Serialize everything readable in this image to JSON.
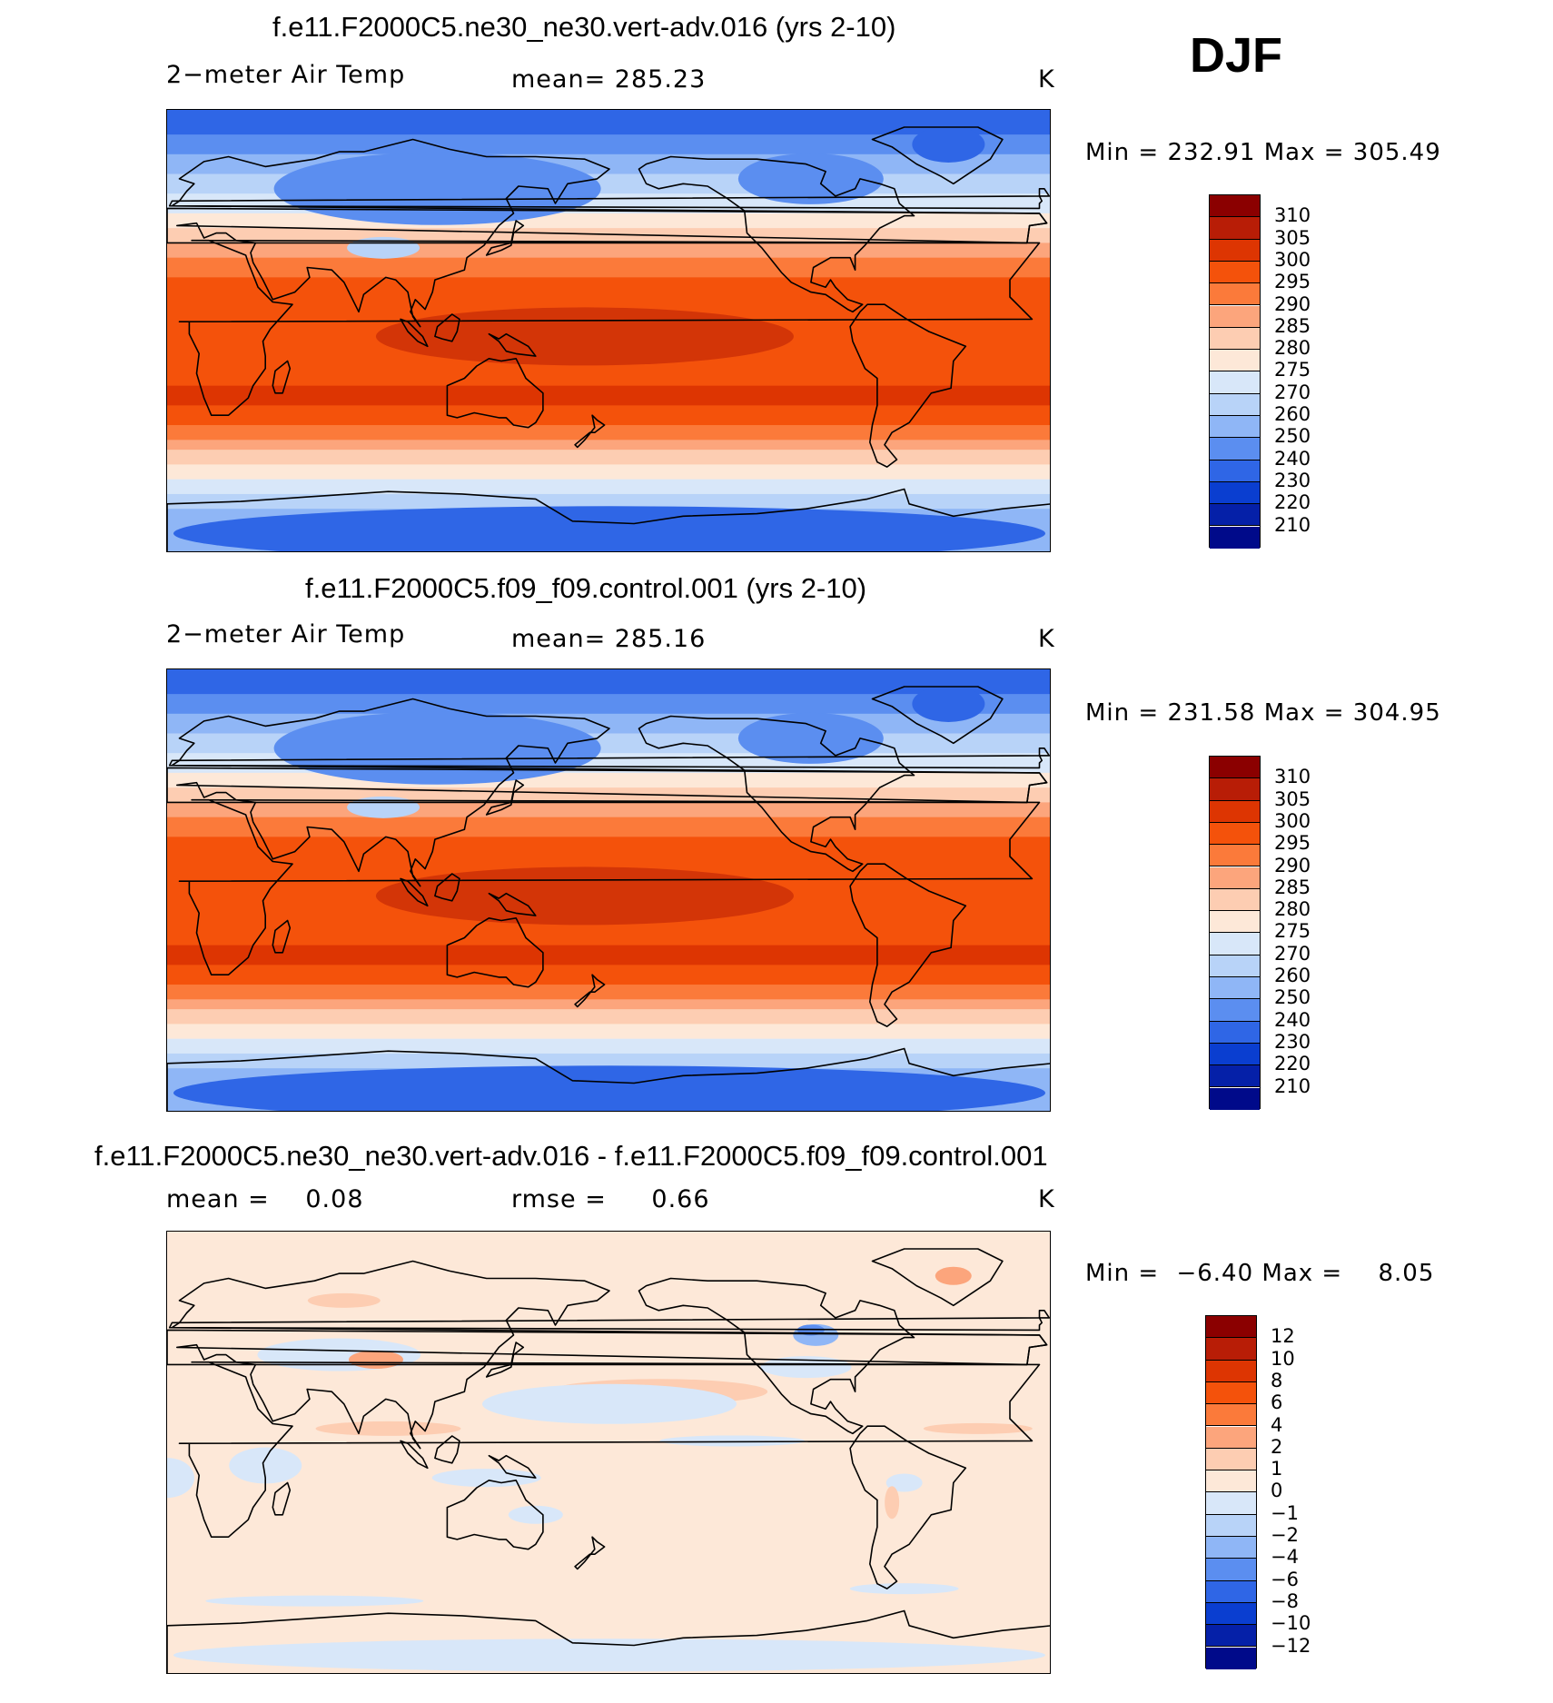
{
  "season": "DJF",
  "land_outline_color": "#000000",
  "chart_data": [
    {
      "type": "heatmap",
      "title": "f.e11.F2000C5.ne30_ne30.vert-adv.016 (yrs 2-10)",
      "variable": "2−meter Air Temp",
      "mean_label": "mean=",
      "mean": "285.23",
      "units": "K",
      "min_label": "Min =",
      "min": "232.91",
      "max_label": "Max =",
      "max": "305.49",
      "projection": "cylindrical equidistant, centered on 180°",
      "colorbar": {
        "labels": [
          "310",
          "305",
          "300",
          "295",
          "290",
          "285",
          "280",
          "275",
          "270",
          "260",
          "250",
          "240",
          "230",
          "220",
          "210"
        ],
        "colors": [
          "#8b0000",
          "#b81d06",
          "#dd3502",
          "#f4520b",
          "#fb7a3a",
          "#fca57c",
          "#fdcdb2",
          "#fde8d8",
          "#d8e7f9",
          "#b8d3f8",
          "#8fb6f6",
          "#5b8ef0",
          "#2f66e6",
          "#0a3ed0",
          "#0520a8",
          "#000a8a"
        ]
      },
      "bands": [
        {
          "lat": [
            90,
            72
          ],
          "value": "230-240"
        },
        {
          "lat": [
            72,
            55
          ],
          "value": "240-260"
        },
        {
          "lat": [
            55,
            42
          ],
          "value": "260-275"
        },
        {
          "lat": [
            42,
            30
          ],
          "value": "280-295"
        },
        {
          "lat": [
            30,
            -30
          ],
          "value": "295-305"
        },
        {
          "lat": [
            -30,
            -45
          ],
          "value": "285-295"
        },
        {
          "lat": [
            -45,
            -60
          ],
          "value": "270-280"
        },
        {
          "lat": [
            -60,
            -90
          ],
          "value": "240-260"
        }
      ]
    },
    {
      "type": "heatmap",
      "title": "f.e11.F2000C5.f09_f09.control.001 (yrs 2-10)",
      "variable": "2−meter Air Temp",
      "mean_label": "mean=",
      "mean": "285.16",
      "units": "K",
      "min_label": "Min =",
      "min": "231.58",
      "max_label": "Max =",
      "max": "304.95",
      "projection": "cylindrical equidistant, centered on 180°",
      "colorbar": {
        "labels": [
          "310",
          "305",
          "300",
          "295",
          "290",
          "285",
          "280",
          "275",
          "270",
          "260",
          "250",
          "240",
          "230",
          "220",
          "210"
        ],
        "colors": [
          "#8b0000",
          "#b81d06",
          "#dd3502",
          "#f4520b",
          "#fb7a3a",
          "#fca57c",
          "#fdcdb2",
          "#fde8d8",
          "#d8e7f9",
          "#b8d3f8",
          "#8fb6f6",
          "#5b8ef0",
          "#2f66e6",
          "#0a3ed0",
          "#0520a8",
          "#000a8a"
        ]
      },
      "bands": [
        {
          "lat": [
            90,
            72
          ],
          "value": "230-240"
        },
        {
          "lat": [
            72,
            55
          ],
          "value": "240-260"
        },
        {
          "lat": [
            55,
            42
          ],
          "value": "260-275"
        },
        {
          "lat": [
            42,
            30
          ],
          "value": "280-295"
        },
        {
          "lat": [
            30,
            -30
          ],
          "value": "295-305"
        },
        {
          "lat": [
            -30,
            -45
          ],
          "value": "285-295"
        },
        {
          "lat": [
            -45,
            -60
          ],
          "value": "270-280"
        },
        {
          "lat": [
            -60,
            -90
          ],
          "value": "240-260"
        }
      ]
    },
    {
      "type": "heatmap",
      "title": "f.e11.F2000C5.ne30_ne30.vert-adv.016 - f.e11.F2000C5.f09_f09.control.001",
      "mean_label": "mean =",
      "mean": "0.08",
      "rmse_label": "rmse =",
      "rmse": "0.66",
      "units": "K",
      "min_label": "Min =",
      "min": "−6.40",
      "max_label": "Max =",
      "max": "8.05",
      "projection": "cylindrical equidistant, centered on 180°",
      "colorbar": {
        "labels": [
          "12",
          "10",
          "8",
          "6",
          "4",
          "2",
          "1",
          "0",
          "−1",
          "−2",
          "−4",
          "−6",
          "−8",
          "−10",
          "−12"
        ],
        "colors": [
          "#8b0000",
          "#b81d06",
          "#dd3502",
          "#f4520b",
          "#fb7a3a",
          "#fca57c",
          "#fdcdb2",
          "#fde8d8",
          "#d8e7f9",
          "#b8d3f8",
          "#8fb6f6",
          "#5b8ef0",
          "#2f66e6",
          "#0a3ed0",
          "#0520a8",
          "#000a8a"
        ]
      },
      "bands": [
        {
          "lat": [
            90,
            -90
          ],
          "value": "-1 to 1 (mostly 0-1)"
        }
      ]
    }
  ]
}
